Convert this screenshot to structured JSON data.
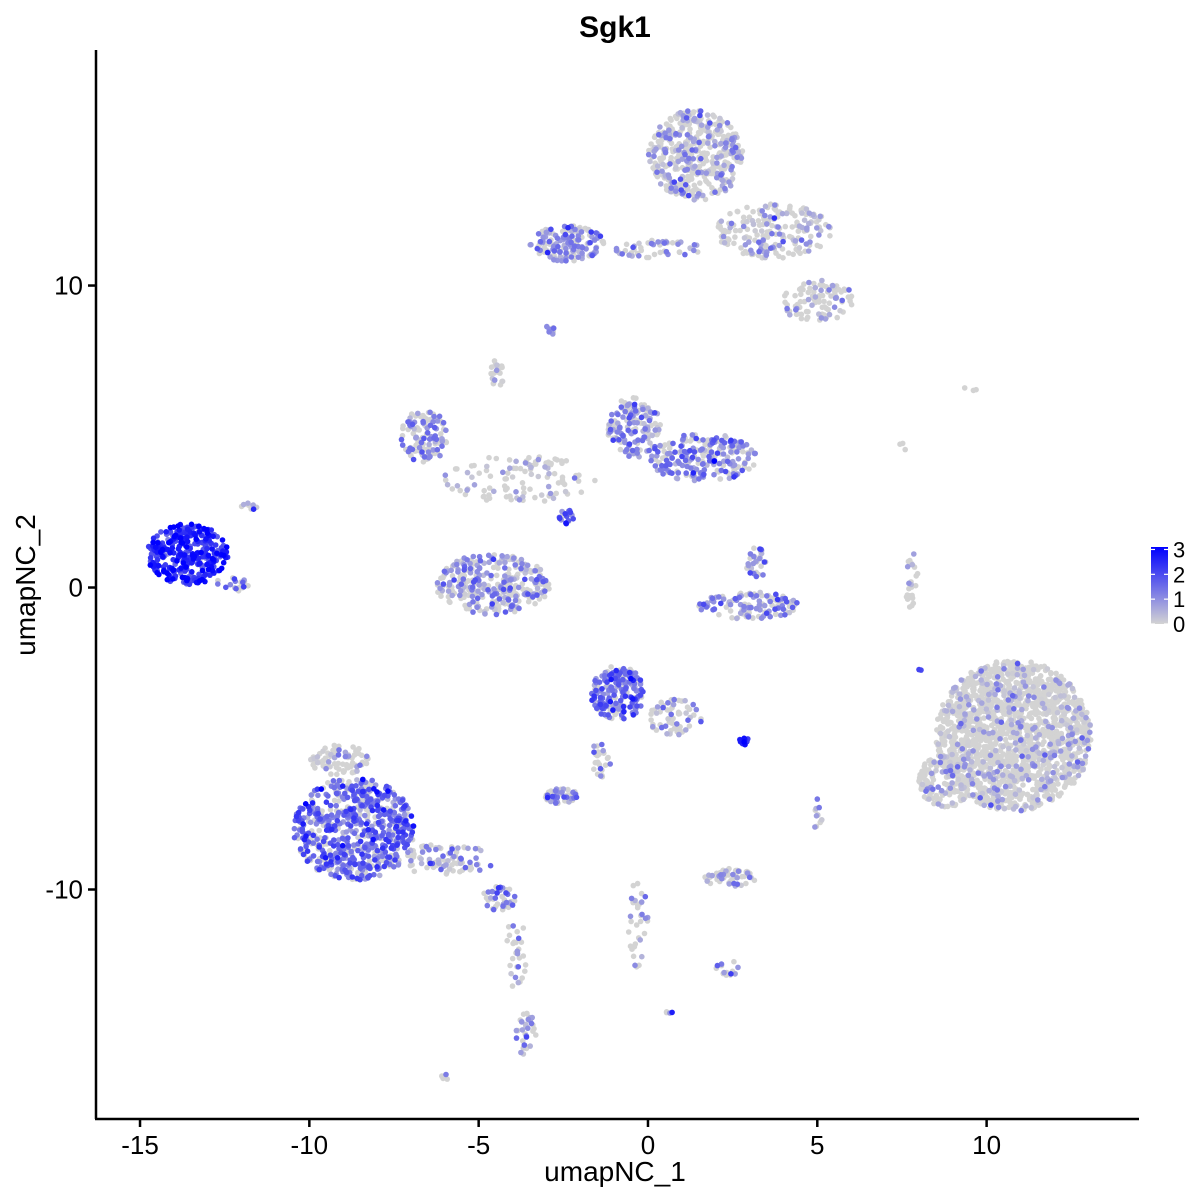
{
  "chart_data": {
    "type": "scatter",
    "title": "Sgk1",
    "xlabel": "umapNC_1",
    "ylabel": "umapNC_2",
    "xlim": [
      -16.3,
      14.5
    ],
    "ylim": [
      -17.6,
      17.8
    ],
    "x_ticks": [
      {
        "value": -15,
        "label": "-15"
      },
      {
        "value": -10,
        "label": "-10"
      },
      {
        "value": -5,
        "label": "-5"
      },
      {
        "value": 0,
        "label": "0"
      },
      {
        "value": 5,
        "label": "5"
      },
      {
        "value": 10,
        "label": "10"
      }
    ],
    "y_ticks": [
      {
        "value": -10,
        "label": "-10"
      },
      {
        "value": 0,
        "label": "0"
      },
      {
        "value": 10,
        "label": "10"
      }
    ],
    "grid": false,
    "legend": {
      "placement": "right",
      "type": "color gradient",
      "low_color": "#d3d3d3",
      "high_color": "#0000ff",
      "min": 0,
      "max": 3.1,
      "ticks": [
        {
          "value": 0,
          "label": "0"
        },
        {
          "value": 1,
          "label": "1"
        },
        {
          "value": 2,
          "label": "2"
        },
        {
          "value": 3,
          "label": "3"
        }
      ]
    },
    "point_color_low": "#d3d3d3",
    "point_color_high": "#0000ff",
    "clusters": [
      {
        "cx": -13.6,
        "cy": 1.1,
        "rx": 1.2,
        "ry": 1.0,
        "n": 330,
        "expr": 2.4
      },
      {
        "cx": -12.3,
        "cy": 0.1,
        "rx": 0.5,
        "ry": 0.25,
        "n": 20,
        "expr": 1.3
      },
      {
        "cx": -11.8,
        "cy": 2.6,
        "rx": 0.3,
        "ry": 0.2,
        "n": 8,
        "expr": 1.2
      },
      {
        "cx": -6.6,
        "cy": 5.0,
        "rx": 0.7,
        "ry": 0.9,
        "n": 120,
        "expr": 1.0
      },
      {
        "cx": -4.6,
        "cy": 0.1,
        "rx": 1.7,
        "ry": 1.0,
        "n": 330,
        "expr": 0.9
      },
      {
        "cx": -3.8,
        "cy": 3.6,
        "rx": 2.3,
        "ry": 0.8,
        "n": 110,
        "expr": 0.3
      },
      {
        "cx": -4.4,
        "cy": 7.1,
        "rx": 0.25,
        "ry": 0.5,
        "n": 20,
        "expr": 0.1
      },
      {
        "cx": -2.4,
        "cy": 2.4,
        "rx": 0.25,
        "ry": 0.3,
        "n": 20,
        "expr": 1.6
      },
      {
        "cx": -0.4,
        "cy": 5.3,
        "rx": 0.8,
        "ry": 1.0,
        "n": 160,
        "expr": 1.0
      },
      {
        "cx": 1.6,
        "cy": 4.3,
        "rx": 1.6,
        "ry": 0.8,
        "n": 230,
        "expr": 1.2
      },
      {
        "cx": 3.0,
        "cy": -0.6,
        "rx": 1.5,
        "ry": 0.45,
        "n": 130,
        "expr": 1.1
      },
      {
        "cx": 3.2,
        "cy": 0.8,
        "rx": 0.3,
        "ry": 0.6,
        "n": 30,
        "expr": 1.0
      },
      {
        "cx": 1.4,
        "cy": 14.3,
        "rx": 1.4,
        "ry": 1.5,
        "n": 450,
        "expr": 0.6
      },
      {
        "cx": 3.7,
        "cy": 11.8,
        "rx": 1.7,
        "ry": 0.9,
        "n": 200,
        "expr": 0.5
      },
      {
        "cx": 5.0,
        "cy": 9.5,
        "rx": 1.1,
        "ry": 0.7,
        "n": 100,
        "expr": 0.5
      },
      {
        "cx": -2.4,
        "cy": 11.4,
        "rx": 1.1,
        "ry": 0.6,
        "n": 150,
        "expr": 1.0
      },
      {
        "cx": 0.3,
        "cy": 11.2,
        "rx": 1.3,
        "ry": 0.3,
        "n": 50,
        "expr": 0.8
      },
      {
        "cx": -2.9,
        "cy": 8.5,
        "rx": 0.2,
        "ry": 0.2,
        "n": 8,
        "expr": 1.3
      },
      {
        "cx": -0.9,
        "cy": -3.5,
        "rx": 0.8,
        "ry": 0.9,
        "n": 200,
        "expr": 1.5
      },
      {
        "cx": 0.8,
        "cy": -4.3,
        "rx": 0.8,
        "ry": 0.6,
        "n": 60,
        "expr": 0.6
      },
      {
        "cx": -1.4,
        "cy": -5.7,
        "rx": 0.3,
        "ry": 0.6,
        "n": 25,
        "expr": 0.9
      },
      {
        "cx": 2.8,
        "cy": -5.1,
        "rx": 0.25,
        "ry": 0.12,
        "n": 14,
        "expr": 2.2
      },
      {
        "cx": -2.6,
        "cy": -6.9,
        "rx": 0.55,
        "ry": 0.25,
        "n": 55,
        "expr": 1.0
      },
      {
        "cx": -8.7,
        "cy": -8.0,
        "rx": 1.8,
        "ry": 1.7,
        "n": 650,
        "expr": 1.5
      },
      {
        "cx": -9.1,
        "cy": -5.7,
        "rx": 0.9,
        "ry": 0.5,
        "n": 80,
        "expr": 0.5
      },
      {
        "cx": -6.0,
        "cy": -9.0,
        "rx": 1.5,
        "ry": 0.5,
        "n": 90,
        "expr": 0.8
      },
      {
        "cx": -4.4,
        "cy": -10.3,
        "rx": 0.5,
        "ry": 0.4,
        "n": 45,
        "expr": 0.9
      },
      {
        "cx": -3.9,
        "cy": -12.2,
        "rx": 0.3,
        "ry": 1.4,
        "n": 30,
        "expr": 0.5
      },
      {
        "cx": -3.6,
        "cy": -14.8,
        "rx": 0.3,
        "ry": 0.7,
        "n": 35,
        "expr": 0.9
      },
      {
        "cx": -0.3,
        "cy": -11.1,
        "rx": 0.3,
        "ry": 1.5,
        "n": 35,
        "expr": 0.9
      },
      {
        "cx": 2.4,
        "cy": -9.6,
        "rx": 0.8,
        "ry": 0.3,
        "n": 60,
        "expr": 0.5
      },
      {
        "cx": 2.4,
        "cy": -12.6,
        "rx": 0.4,
        "ry": 0.25,
        "n": 16,
        "expr": 1.0
      },
      {
        "cx": 5.0,
        "cy": -7.5,
        "rx": 0.15,
        "ry": 0.5,
        "n": 12,
        "expr": 0.2
      },
      {
        "cx": 0.6,
        "cy": -14.1,
        "rx": 0.12,
        "ry": 0.1,
        "n": 4,
        "expr": 1.0
      },
      {
        "cx": -6.0,
        "cy": -16.2,
        "rx": 0.12,
        "ry": 0.1,
        "n": 4,
        "expr": 0.6
      },
      {
        "cx": 7.8,
        "cy": 0.2,
        "rx": 0.2,
        "ry": 1.0,
        "n": 25,
        "expr": 0.2
      },
      {
        "cx": 8.0,
        "cy": -2.7,
        "rx": 0.08,
        "ry": 0.08,
        "n": 2,
        "expr": 1.8
      },
      {
        "cx": 9.6,
        "cy": 6.6,
        "rx": 0.3,
        "ry": 0.1,
        "n": 3,
        "expr": 0.1
      },
      {
        "cx": 7.6,
        "cy": 4.8,
        "rx": 0.2,
        "ry": 0.25,
        "n": 3,
        "expr": 0.1
      },
      {
        "cx": 10.8,
        "cy": -4.9,
        "rx": 2.3,
        "ry": 2.5,
        "n": 1700,
        "expr": 0.18
      },
      {
        "cx": 8.8,
        "cy": -6.4,
        "rx": 0.8,
        "ry": 0.9,
        "n": 150,
        "expr": 0.3
      }
    ]
  }
}
